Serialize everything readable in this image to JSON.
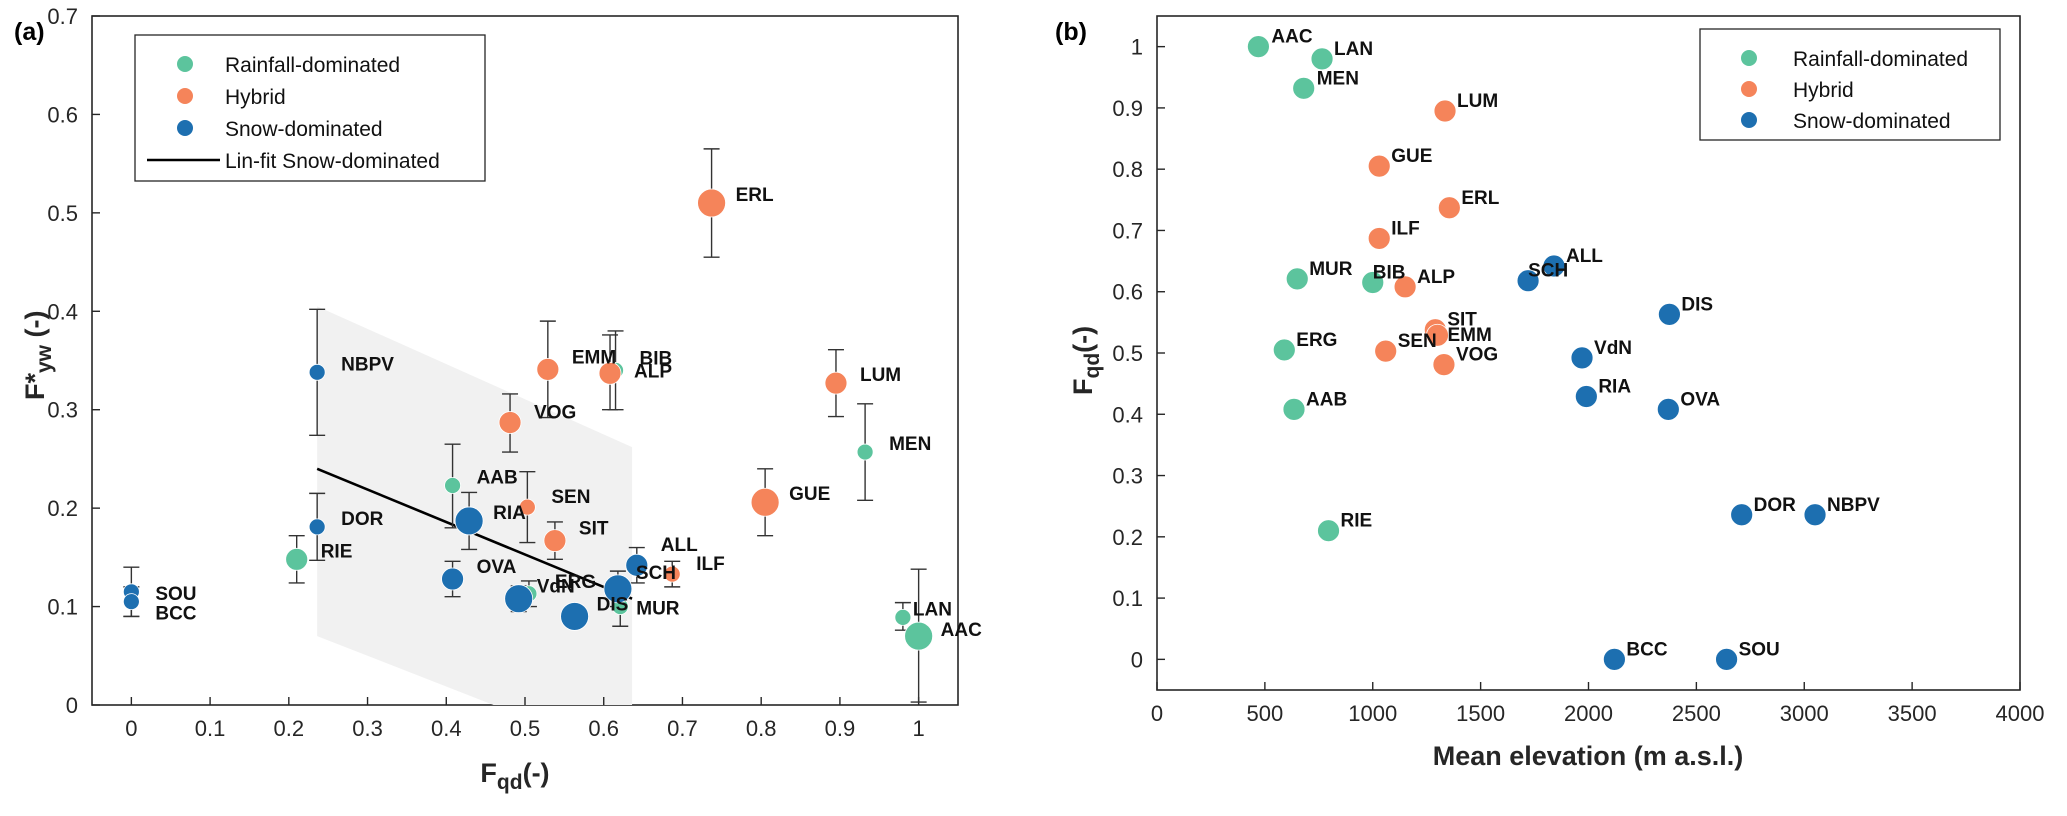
{
  "chart_data": [
    {
      "panel": "(a)",
      "type": "scatter",
      "xlabel_main": "F",
      "xlabel_sub": "qd",
      "xlabel_suffix": "(-)",
      "ylabel_main": "F*",
      "ylabel_sub": "yw",
      "ylabel_suffix": " (-)",
      "xlim": [
        -0.05,
        1.05
      ],
      "ylim": [
        0,
        0.7
      ],
      "xticks": [
        0,
        0.1,
        0.2,
        0.3,
        0.4,
        0.5,
        0.6,
        0.7,
        0.8,
        0.9,
        1
      ],
      "yticks": [
        0,
        0.1,
        0.2,
        0.3,
        0.4,
        0.5,
        0.6,
        0.7
      ],
      "legend": {
        "position": "top-left",
        "entries": [
          "Rainfall-dominated",
          "Hybrid",
          "Snow-dominated",
          "Lin-fit Snow-dominated"
        ]
      },
      "colors": {
        "Rainfall-dominated": "#5cc49d",
        "Hybrid": "#f5845a",
        "Snow-dominated": "#1d6fb0",
        "fit": "#000000",
        "band": "#f1f1f1",
        "errbar": "#333333"
      },
      "fit_line": {
        "x": [
          0.236,
          0.636
        ],
        "y": [
          0.24,
          0.108
        ]
      },
      "confidence_band": {
        "upper": [
          [
            0.236,
            0.405
          ],
          [
            0.636,
            0.262
          ]
        ],
        "lower": [
          [
            0.636,
            0.0
          ],
          [
            0.46,
            0.0
          ],
          [
            0.236,
            0.07
          ]
        ]
      },
      "points": [
        {
          "label": "AAC",
          "group": "Rainfall-dominated",
          "x": 1.0,
          "y": 0.07,
          "err_low": 0.003,
          "err_high": 0.138,
          "size": "large"
        },
        {
          "label": "LAN",
          "group": "Rainfall-dominated",
          "x": 0.98,
          "y": 0.089,
          "err_low": 0.076,
          "err_high": 0.104,
          "size": "small"
        },
        {
          "label": "MEN",
          "group": "Rainfall-dominated",
          "x": 0.932,
          "y": 0.257,
          "err_low": 0.208,
          "err_high": 0.306,
          "size": "small"
        },
        {
          "label": "ERG",
          "group": "Rainfall-dominated",
          "x": 0.505,
          "y": 0.113,
          "err_low": 0.1,
          "err_high": 0.126,
          "size": "small"
        },
        {
          "label": "RIE",
          "group": "Rainfall-dominated",
          "x": 0.21,
          "y": 0.148,
          "err_low": 0.124,
          "err_high": 0.172,
          "size": "medium"
        },
        {
          "label": "AAB",
          "group": "Rainfall-dominated",
          "x": 0.408,
          "y": 0.223,
          "err_low": 0.18,
          "err_high": 0.265,
          "size": "small"
        },
        {
          "label": "BIB",
          "group": "Rainfall-dominated",
          "x": 0.615,
          "y": 0.34,
          "err_low": 0.3,
          "err_high": 0.38,
          "size": "small"
        },
        {
          "label": "MUR",
          "group": "Rainfall-dominated",
          "x": 0.621,
          "y": 0.1,
          "err_low": 0.08,
          "err_high": 0.12,
          "size": "small"
        },
        {
          "label": "ERL",
          "group": "Hybrid",
          "x": 0.737,
          "y": 0.51,
          "err_low": 0.455,
          "err_high": 0.565,
          "size": "large"
        },
        {
          "label": "LUM",
          "group": "Hybrid",
          "x": 0.895,
          "y": 0.327,
          "err_low": 0.293,
          "err_high": 0.361,
          "size": "medium"
        },
        {
          "label": "GUE",
          "group": "Hybrid",
          "x": 0.805,
          "y": 0.206,
          "err_low": 0.172,
          "err_high": 0.24,
          "size": "large"
        },
        {
          "label": "EMM",
          "group": "Hybrid",
          "x": 0.529,
          "y": 0.341,
          "err_low": 0.292,
          "err_high": 0.39,
          "size": "medium"
        },
        {
          "label": "ALP",
          "group": "Hybrid",
          "x": 0.608,
          "y": 0.337,
          "err_low": 0.3,
          "err_high": 0.376,
          "size": "medium"
        },
        {
          "label": "VOG",
          "group": "Hybrid",
          "x": 0.481,
          "y": 0.287,
          "err_low": 0.257,
          "err_high": 0.316,
          "size": "medium"
        },
        {
          "label": "SEN",
          "group": "Hybrid",
          "x": 0.503,
          "y": 0.201,
          "err_low": 0.165,
          "err_high": 0.237,
          "size": "small"
        },
        {
          "label": "SIT",
          "group": "Hybrid",
          "x": 0.538,
          "y": 0.167,
          "err_low": 0.148,
          "err_high": 0.186,
          "size": "medium"
        },
        {
          "label": "ILF",
          "group": "Hybrid",
          "x": 0.687,
          "y": 0.133,
          "err_low": 0.12,
          "err_high": 0.146,
          "size": "small"
        },
        {
          "label": "NBPV",
          "group": "Snow-dominated",
          "x": 0.236,
          "y": 0.338,
          "err_low": 0.274,
          "err_high": 0.402,
          "size": "small"
        },
        {
          "label": "DOR",
          "group": "Snow-dominated",
          "x": 0.236,
          "y": 0.181,
          "err_low": 0.147,
          "err_high": 0.215,
          "size": "small"
        },
        {
          "label": "SOU",
          "group": "Snow-dominated",
          "x": 0.0,
          "y": 0.115,
          "err_low": 0.09,
          "err_high": 0.14,
          "size": "small"
        },
        {
          "label": "BCC",
          "group": "Snow-dominated",
          "x": 0.0,
          "y": 0.105,
          "err_low": 0.09,
          "err_high": 0.12,
          "size": "small"
        },
        {
          "label": "RIA",
          "group": "Snow-dominated",
          "x": 0.429,
          "y": 0.187,
          "err_low": 0.158,
          "err_high": 0.216,
          "size": "large"
        },
        {
          "label": "OVA",
          "group": "Snow-dominated",
          "x": 0.408,
          "y": 0.128,
          "err_low": 0.11,
          "err_high": 0.146,
          "size": "medium"
        },
        {
          "label": "VdN",
          "group": "Snow-dominated",
          "x": 0.492,
          "y": 0.108,
          "err_low": 0.095,
          "err_high": 0.121,
          "size": "large"
        },
        {
          "label": "DIS",
          "group": "Snow-dominated",
          "x": 0.563,
          "y": 0.09,
          "err_low": 0.08,
          "err_high": 0.1,
          "size": "large"
        },
        {
          "label": "SCH",
          "group": "Snow-dominated",
          "x": 0.618,
          "y": 0.118,
          "err_low": 0.1,
          "err_high": 0.136,
          "size": "large"
        },
        {
          "label": "ALL",
          "group": "Snow-dominated",
          "x": 0.642,
          "y": 0.142,
          "err_low": 0.124,
          "err_high": 0.16,
          "size": "medium"
        }
      ]
    },
    {
      "panel": "(b)",
      "type": "scatter",
      "xlabel": "Mean elevation (m a.s.l.)",
      "ylabel_main": "F",
      "ylabel_sub": "qd",
      "ylabel_suffix": "(-)",
      "xlim": [
        0,
        4000
      ],
      "ylim": [
        -0.05,
        1.05
      ],
      "xticks": [
        0,
        500,
        1000,
        1500,
        2000,
        2500,
        3000,
        3500,
        4000
      ],
      "yticks": [
        0,
        0.1,
        0.2,
        0.3,
        0.4,
        0.5,
        0.6,
        0.7,
        0.8,
        0.9,
        1
      ],
      "legend": {
        "position": "top-right",
        "entries": [
          "Rainfall-dominated",
          "Hybrid",
          "Snow-dominated"
        ]
      },
      "colors": {
        "Rainfall-dominated": "#5cc49d",
        "Hybrid": "#f5845a",
        "Snow-dominated": "#1d6fb0"
      },
      "points": [
        {
          "label": "AAC",
          "group": "Rainfall-dominated",
          "x": 470,
          "y": 1.0
        },
        {
          "label": "LAN",
          "group": "Rainfall-dominated",
          "x": 765,
          "y": 0.98
        },
        {
          "label": "MEN",
          "group": "Rainfall-dominated",
          "x": 680,
          "y": 0.932
        },
        {
          "label": "MUR",
          "group": "Rainfall-dominated",
          "x": 650,
          "y": 0.621
        },
        {
          "label": "BIB",
          "group": "Rainfall-dominated",
          "x": 1000,
          "y": 0.615
        },
        {
          "label": "ERG",
          "group": "Rainfall-dominated",
          "x": 590,
          "y": 0.505
        },
        {
          "label": "AAB",
          "group": "Rainfall-dominated",
          "x": 635,
          "y": 0.408
        },
        {
          "label": "RIE",
          "group": "Rainfall-dominated",
          "x": 795,
          "y": 0.21
        },
        {
          "label": "LUM",
          "group": "Hybrid",
          "x": 1335,
          "y": 0.895
        },
        {
          "label": "GUE",
          "group": "Hybrid",
          "x": 1030,
          "y": 0.805
        },
        {
          "label": "ERL",
          "group": "Hybrid",
          "x": 1355,
          "y": 0.737
        },
        {
          "label": "ILF",
          "group": "Hybrid",
          "x": 1030,
          "y": 0.687
        },
        {
          "label": "ALP",
          "group": "Hybrid",
          "x": 1150,
          "y": 0.608
        },
        {
          "label": "SIT",
          "group": "Hybrid",
          "x": 1290,
          "y": 0.538
        },
        {
          "label": "EMM",
          "group": "Hybrid",
          "x": 1300,
          "y": 0.529
        },
        {
          "label": "SEN",
          "group": "Hybrid",
          "x": 1060,
          "y": 0.503
        },
        {
          "label": "VOG",
          "group": "Hybrid",
          "x": 1330,
          "y": 0.481
        },
        {
          "label": "ALL",
          "group": "Snow-dominated",
          "x": 1840,
          "y": 0.642
        },
        {
          "label": "SCH",
          "group": "Snow-dominated",
          "x": 1720,
          "y": 0.618
        },
        {
          "label": "DIS",
          "group": "Snow-dominated",
          "x": 2375,
          "y": 0.563
        },
        {
          "label": "VdN",
          "group": "Snow-dominated",
          "x": 1970,
          "y": 0.492
        },
        {
          "label": "RIA",
          "group": "Snow-dominated",
          "x": 1990,
          "y": 0.429
        },
        {
          "label": "OVA",
          "group": "Snow-dominated",
          "x": 2370,
          "y": 0.408
        },
        {
          "label": "DOR",
          "group": "Snow-dominated",
          "x": 2710,
          "y": 0.236
        },
        {
          "label": "NBPV",
          "group": "Snow-dominated",
          "x": 3050,
          "y": 0.236
        },
        {
          "label": "BCC",
          "group": "Snow-dominated",
          "x": 2120,
          "y": 0.0
        },
        {
          "label": "SOU",
          "group": "Snow-dominated",
          "x": 2640,
          "y": 0.0
        }
      ]
    }
  ]
}
